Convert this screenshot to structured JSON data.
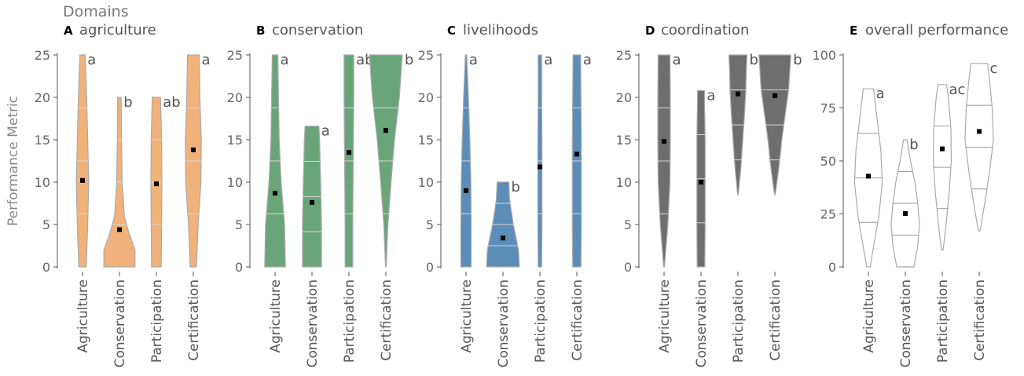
{
  "figure": {
    "legend_title": "Domains",
    "ylabel": "Performance Metric"
  },
  "chart_data": [
    {
      "type": "violin",
      "panel_letter": "A",
      "title": "agriculture",
      "color": "#F0B27A",
      "ylim": [
        0,
        25
      ],
      "yticks": [
        0,
        5,
        10,
        15,
        20,
        25
      ],
      "categories": [
        "Agriculture",
        "Conservation",
        "Participation",
        "Certification"
      ],
      "max": [
        25,
        20,
        20,
        25
      ],
      "mean": [
        10.2,
        4.4,
        9.8,
        13.8
      ],
      "letters": [
        "a",
        "b",
        "ab",
        "a"
      ],
      "widths": [
        [
          [
            0,
            0.22
          ],
          [
            5,
            0.3
          ],
          [
            10,
            0.36
          ],
          [
            15,
            0.3
          ],
          [
            20,
            0.24
          ],
          [
            25,
            0.15
          ]
        ],
        [
          [
            0,
            0.9
          ],
          [
            2,
            0.9
          ],
          [
            4,
            0.55
          ],
          [
            6,
            0.28
          ],
          [
            10,
            0.16
          ],
          [
            15,
            0.12
          ],
          [
            20,
            0.1
          ]
        ],
        [
          [
            0,
            0.28
          ],
          [
            5,
            0.3
          ],
          [
            10,
            0.32
          ],
          [
            15,
            0.3
          ],
          [
            20,
            0.24
          ]
        ],
        [
          [
            0,
            0.18
          ],
          [
            5,
            0.28
          ],
          [
            10,
            0.44
          ],
          [
            15,
            0.46
          ],
          [
            20,
            0.38
          ],
          [
            25,
            0.34
          ]
        ]
      ]
    },
    {
      "type": "violin",
      "panel_letter": "B",
      "title": "conservation",
      "color": "#6AA57A",
      "ylim": [
        0,
        25
      ],
      "yticks": [
        0,
        5,
        10,
        15,
        20,
        25
      ],
      "categories": [
        "Agriculture",
        "Conservation",
        "Participation",
        "Certification"
      ],
      "max": [
        25,
        16.6,
        25,
        25
      ],
      "mean": [
        8.7,
        7.6,
        13.5,
        16.1
      ],
      "letters": [
        "a",
        "a",
        "ab",
        "b"
      ],
      "widths": [
        [
          [
            0,
            0.6
          ],
          [
            5,
            0.55
          ],
          [
            10,
            0.35
          ],
          [
            15,
            0.24
          ],
          [
            20,
            0.2
          ],
          [
            25,
            0.16
          ]
        ],
        [
          [
            0,
            0.55
          ],
          [
            5,
            0.55
          ],
          [
            10,
            0.5
          ],
          [
            15,
            0.44
          ],
          [
            16.6,
            0.4
          ]
        ],
        [
          [
            0,
            0.22
          ],
          [
            5,
            0.22
          ],
          [
            10,
            0.24
          ],
          [
            15,
            0.26
          ],
          [
            20,
            0.28
          ],
          [
            25,
            0.28
          ]
        ],
        [
          [
            0,
            0.02
          ],
          [
            5,
            0.12
          ],
          [
            10,
            0.3
          ],
          [
            15,
            0.5
          ],
          [
            20,
            0.78
          ],
          [
            25,
            0.95
          ]
        ]
      ]
    },
    {
      "type": "violin",
      "panel_letter": "C",
      "title": "livelihoods",
      "color": "#5B8DB8",
      "ylim": [
        0,
        25
      ],
      "yticks": [
        0,
        5,
        10,
        15,
        20,
        25
      ],
      "categories": [
        "Agriculture",
        "Conservation",
        "Participation",
        "Certification"
      ],
      "max": [
        25,
        10,
        25,
        25
      ],
      "mean": [
        9.0,
        3.4,
        11.8,
        13.3
      ],
      "letters": [
        "a",
        "b",
        "a",
        "a"
      ],
      "widths": [
        [
          [
            0,
            0.3
          ],
          [
            5,
            0.3
          ],
          [
            10,
            0.28
          ],
          [
            15,
            0.22
          ],
          [
            20,
            0.14
          ],
          [
            25,
            0.04
          ]
        ],
        [
          [
            0,
            0.95
          ],
          [
            2,
            0.9
          ],
          [
            5,
            0.6
          ],
          [
            8,
            0.38
          ],
          [
            10,
            0.34
          ]
        ],
        [
          [
            0,
            0.1
          ],
          [
            5,
            0.12
          ],
          [
            10,
            0.12
          ],
          [
            15,
            0.12
          ],
          [
            20,
            0.1
          ],
          [
            25,
            0.1
          ]
        ],
        [
          [
            0,
            0.24
          ],
          [
            5,
            0.26
          ],
          [
            10,
            0.26
          ],
          [
            15,
            0.26
          ],
          [
            20,
            0.24
          ],
          [
            25,
            0.22
          ]
        ]
      ]
    },
    {
      "type": "violin",
      "panel_letter": "D",
      "title": "coordination",
      "color": "#6E6E6E",
      "ylim": [
        0,
        25
      ],
      "yticks": [
        0,
        5,
        10,
        15,
        20,
        25
      ],
      "categories": [
        "Agriculture",
        "Conservation",
        "Participation",
        "Certification"
      ],
      "max": [
        25,
        20.8,
        25,
        25
      ],
      "mean": [
        14.8,
        10.0,
        20.4,
        20.2
      ],
      "letters": [
        "a",
        "a",
        "b",
        "b"
      ],
      "widths": [
        [
          [
            0,
            0.02
          ],
          [
            5,
            0.22
          ],
          [
            10,
            0.34
          ],
          [
            15,
            0.36
          ],
          [
            20,
            0.36
          ],
          [
            25,
            0.34
          ]
        ],
        [
          [
            0,
            0.22
          ],
          [
            5,
            0.24
          ],
          [
            10,
            0.24
          ],
          [
            15,
            0.24
          ],
          [
            20,
            0.2
          ],
          [
            20.8,
            0.2
          ]
        ],
        [
          [
            8.5,
            0.02
          ],
          [
            12,
            0.18
          ],
          [
            15,
            0.28
          ],
          [
            18,
            0.38
          ],
          [
            21,
            0.46
          ],
          [
            23,
            0.48
          ],
          [
            25,
            0.52
          ]
        ],
        [
          [
            8.5,
            0.02
          ],
          [
            12,
            0.25
          ],
          [
            15,
            0.4
          ],
          [
            18,
            0.6
          ],
          [
            21,
            0.8
          ],
          [
            25,
            0.92
          ]
        ]
      ]
    },
    {
      "type": "violin",
      "panel_letter": "E",
      "title": "overall performance",
      "color": "#FFFFFF",
      "ylim": [
        0,
        100
      ],
      "yticks": [
        0,
        25,
        50,
        75,
        100
      ],
      "categories": [
        "Agriculture",
        "Conservation",
        "Participation",
        "Certification"
      ],
      "max": [
        84,
        60,
        86,
        96
      ],
      "mean": [
        42.8,
        25.2,
        55.7,
        63.9
      ],
      "letters": [
        "a",
        "b",
        "ac",
        "c"
      ],
      "widths": [
        [
          [
            0,
            0.1
          ],
          [
            12,
            0.35
          ],
          [
            25,
            0.62
          ],
          [
            40,
            0.8
          ],
          [
            55,
            0.72
          ],
          [
            70,
            0.5
          ],
          [
            84,
            0.3
          ]
        ],
        [
          [
            0,
            0.5
          ],
          [
            10,
            0.72
          ],
          [
            20,
            0.82
          ],
          [
            30,
            0.72
          ],
          [
            40,
            0.55
          ],
          [
            50,
            0.3
          ],
          [
            60,
            0.1
          ]
        ],
        [
          [
            8,
            0.05
          ],
          [
            20,
            0.22
          ],
          [
            35,
            0.4
          ],
          [
            50,
            0.52
          ],
          [
            65,
            0.5
          ],
          [
            80,
            0.35
          ],
          [
            86,
            0.25
          ]
        ],
        [
          [
            17,
            0.05
          ],
          [
            30,
            0.32
          ],
          [
            45,
            0.6
          ],
          [
            60,
            0.82
          ],
          [
            75,
            0.75
          ],
          [
            88,
            0.6
          ],
          [
            96,
            0.48
          ]
        ]
      ]
    }
  ]
}
